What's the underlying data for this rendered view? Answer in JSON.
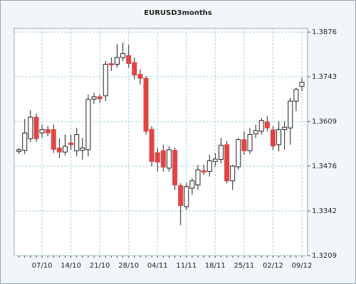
{
  "chart_data": {
    "type": "candlestick",
    "title": "EURUSD3months",
    "categories": [
      null,
      null,
      null,
      null,
      "07/10",
      null,
      null,
      null,
      null,
      "14/10",
      null,
      null,
      null,
      null,
      "21/10",
      null,
      null,
      null,
      null,
      "28/10",
      null,
      null,
      null,
      null,
      "04/11",
      null,
      null,
      null,
      null,
      "11/11",
      null,
      null,
      null,
      null,
      "18/11",
      null,
      null,
      null,
      null,
      "25/11",
      null,
      null,
      null,
      null,
      "02/12",
      null,
      null,
      null,
      null,
      "09/12"
    ],
    "open": [
      1.352,
      1.3523,
      1.3558,
      1.3622,
      1.3575,
      1.3585,
      1.3585,
      1.353,
      1.3518,
      1.3545,
      1.3522,
      1.3523,
      1.3525,
      1.3676,
      1.3683,
      1.3686,
      1.3782,
      1.378,
      1.38,
      1.3806,
      1.3785,
      1.375,
      1.3738,
      1.3586,
      1.3516,
      1.3522,
      1.347,
      1.3523,
      1.3418,
      1.3355,
      1.341,
      1.342,
      1.3462,
      1.346,
      1.349,
      1.3496,
      1.354,
      1.3432,
      1.3474,
      1.3555,
      1.3522,
      1.3572,
      1.358,
      1.3608,
      1.3584,
      1.354,
      1.3585,
      1.359,
      1.367,
      1.3714
    ],
    "high": [
      1.353,
      1.3617,
      1.3643,
      1.3633,
      1.36,
      1.3596,
      1.36,
      1.356,
      1.357,
      1.357,
      1.359,
      1.356,
      1.369,
      1.3695,
      1.369,
      1.379,
      1.38,
      1.384,
      1.3845,
      1.3838,
      1.38,
      1.3765,
      1.3745,
      1.3595,
      1.353,
      1.354,
      1.3535,
      1.353,
      1.3425,
      1.3425,
      1.344,
      1.348,
      1.348,
      1.351,
      1.3515,
      1.356,
      1.355,
      1.348,
      1.356,
      1.358,
      1.359,
      1.36,
      1.362,
      1.3625,
      1.3595,
      1.361,
      1.361,
      1.368,
      1.371,
      1.374
    ],
    "low": [
      1.3512,
      1.3512,
      1.3548,
      1.3548,
      1.356,
      1.3565,
      1.3515,
      1.35,
      1.3508,
      1.3525,
      1.3505,
      1.3495,
      1.3505,
      1.3662,
      1.3665,
      1.367,
      1.376,
      1.377,
      1.379,
      1.377,
      1.3735,
      1.372,
      1.357,
      1.3475,
      1.346,
      1.346,
      1.346,
      1.3405,
      1.33,
      1.3345,
      1.339,
      1.3405,
      1.345,
      1.3445,
      1.3475,
      1.3485,
      1.3425,
      1.3405,
      1.3465,
      1.351,
      1.3512,
      1.356,
      1.357,
      1.358,
      1.3525,
      1.352,
      1.3525,
      1.354,
      1.364,
      1.37
    ],
    "close": [
      1.3525,
      1.3575,
      1.3622,
      1.3558,
      1.3585,
      1.3575,
      1.3526,
      1.3518,
      1.3535,
      1.354,
      1.357,
      1.353,
      1.3675,
      1.3683,
      1.3677,
      1.378,
      1.3778,
      1.38,
      1.3812,
      1.3782,
      1.3748,
      1.3738,
      1.358,
      1.349,
      1.3488,
      1.3473,
      1.3525,
      1.342,
      1.3358,
      1.3415,
      1.3432,
      1.3465,
      1.3458,
      1.3492,
      1.3497,
      1.3538,
      1.3432,
      1.3476,
      1.3555,
      1.3522,
      1.357,
      1.3582,
      1.3612,
      1.359,
      1.3536,
      1.3585,
      1.3592,
      1.367,
      1.3705,
      1.3726
    ],
    "up_color": "#ffffff",
    "down_color": "#e04545",
    "ylim": [
      1.3209,
      1.3887
    ],
    "yticks": [
      1.3209,
      1.3342,
      1.3476,
      1.3609,
      1.3743,
      1.3876
    ],
    "grid": true
  }
}
